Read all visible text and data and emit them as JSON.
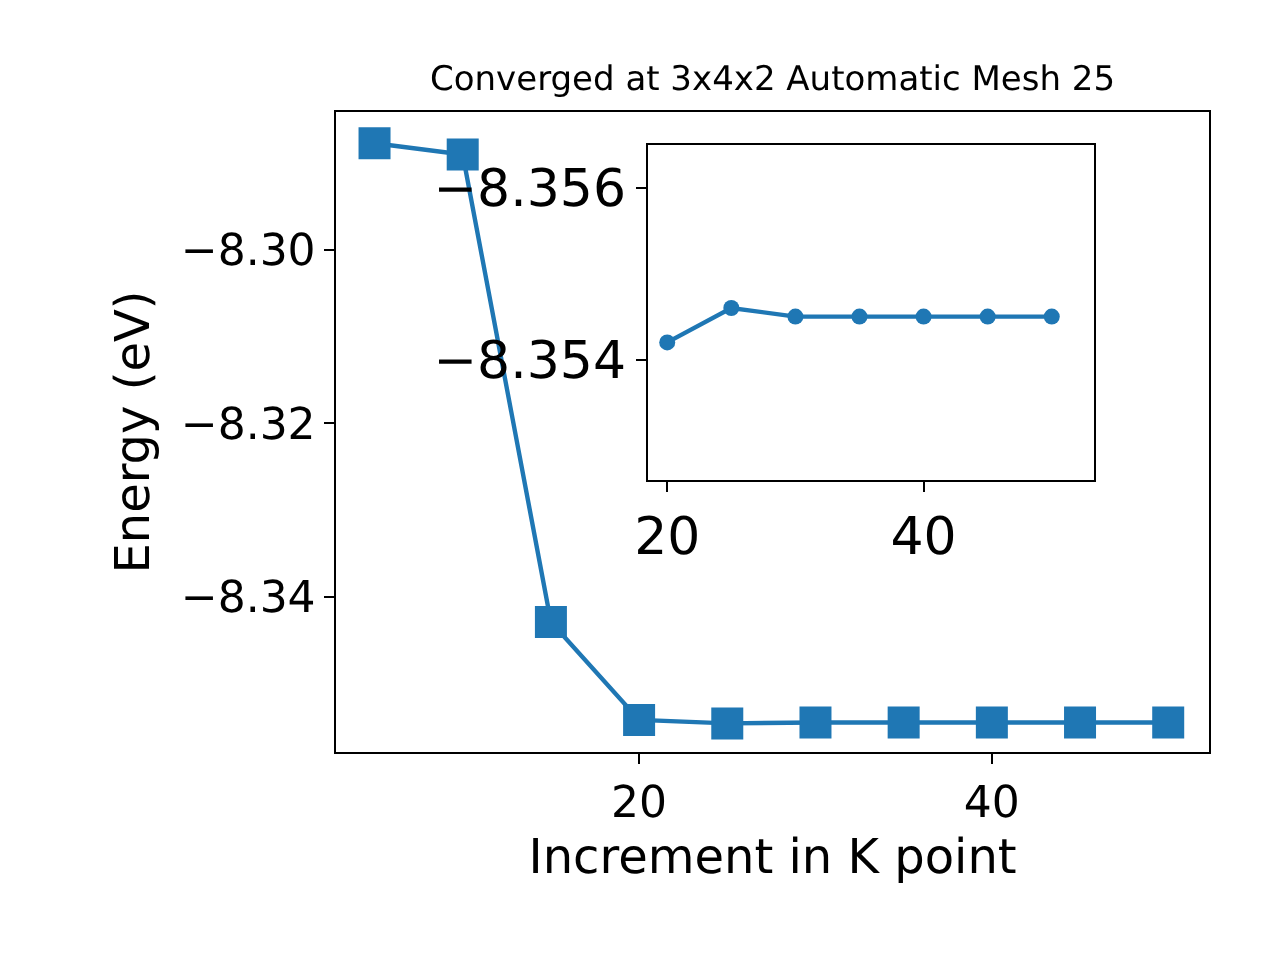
{
  "chart_data": [
    {
      "type": "line",
      "title": "Converged at 3x4x2 Automatic Mesh 25",
      "xlabel": "Increment in K point",
      "ylabel": "Energy (eV)",
      "x": [
        5,
        10,
        15,
        20,
        25,
        30,
        35,
        40,
        45,
        50
      ],
      "series": [
        {
          "color": "#1f77b4",
          "values": [
            -8.2877,
            -8.289,
            -8.3429,
            -8.3542,
            -8.3546,
            -8.3545,
            -8.3545,
            -8.3545,
            -8.3545,
            -8.3545
          ]
        }
      ],
      "xlim": [
        2.84,
        52.3
      ],
      "ylim": [
        -8.3579,
        -8.2841
      ],
      "xticks": [
        20,
        40
      ],
      "yticks": [
        {
          "value": -8.3,
          "label": "−8.30"
        },
        {
          "value": -8.32,
          "label": "−8.32"
        },
        {
          "value": -8.34,
          "label": "−8.34"
        }
      ],
      "marker": "square",
      "line_style": "solid"
    },
    {
      "type": "line",
      "x": [
        20,
        25,
        30,
        35,
        40,
        45,
        50
      ],
      "series": [
        {
          "color": "#1f77b4",
          "values": [
            -8.3542,
            -8.3546,
            -8.3545,
            -8.3545,
            -8.3545,
            -8.3545,
            -8.3545
          ]
        }
      ],
      "xlim": [
        18.53,
        53.3
      ],
      "ylim": [
        -8.3526,
        -8.3565
      ],
      "xticks": [
        20,
        40
      ],
      "yticks": [
        {
          "value": -8.356,
          "label": "−8.356"
        },
        {
          "value": -8.354,
          "label": "−8.354"
        }
      ],
      "marker": "circle",
      "line_style": "solid"
    }
  ]
}
